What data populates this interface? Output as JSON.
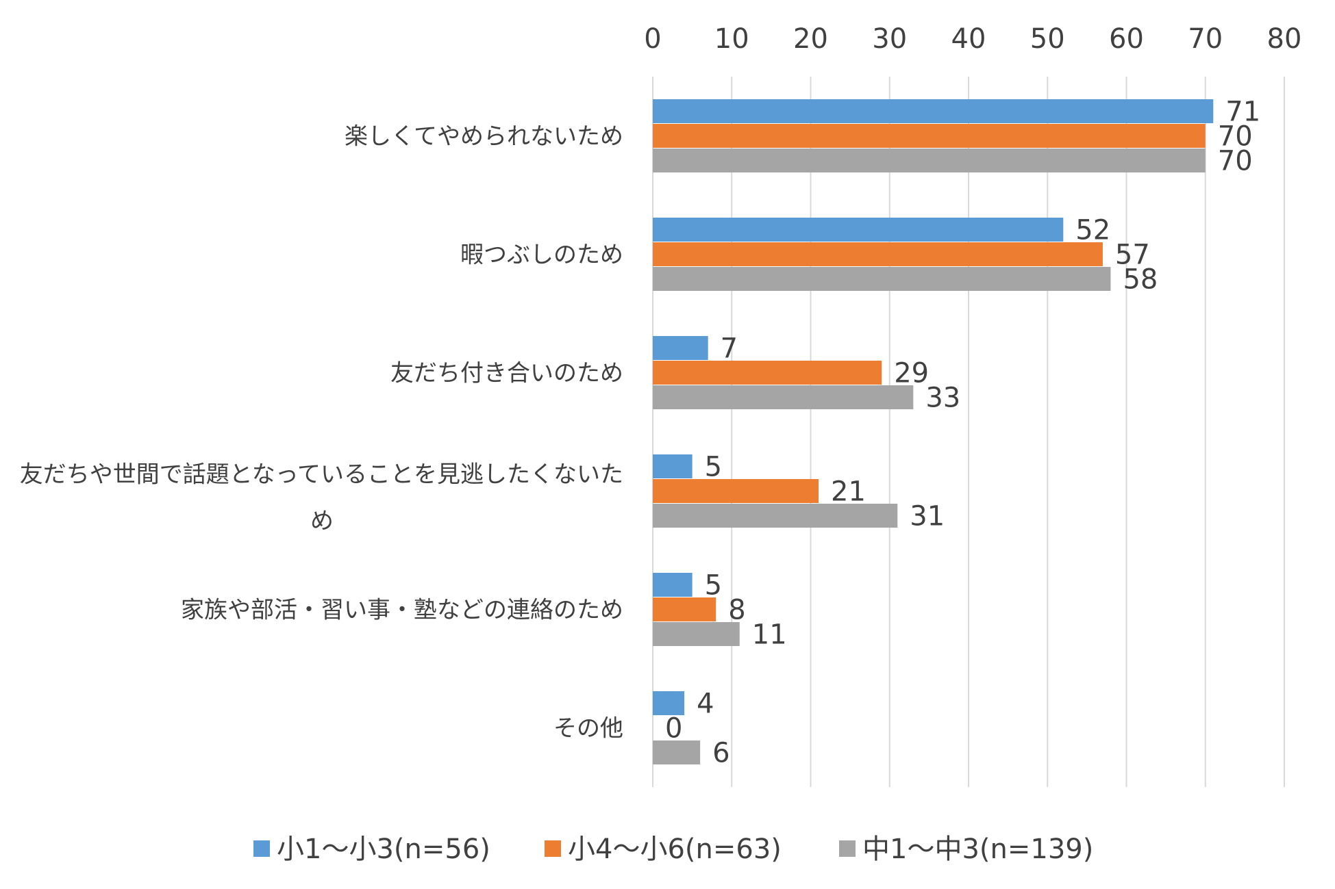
{
  "chart_data": {
    "type": "bar",
    "orientation": "horizontal",
    "title": "",
    "xlabel": "",
    "ylabel": "",
    "xlim": [
      0,
      80
    ],
    "x_ticks": [
      0,
      10,
      20,
      30,
      40,
      50,
      60,
      70,
      80
    ],
    "x_axis_position": "top",
    "grid": true,
    "legend_position": "bottom",
    "categories": [
      "楽しくてやめられないため",
      "暇つぶしのため",
      "友だち付き合いのため",
      "友だちや世間で話題となっていることを見逃したくないため",
      "家族や部活・習い事・塾などの連絡のため",
      "その他"
    ],
    "category_label_lines": [
      [
        "楽しくてやめられないため"
      ],
      [
        "暇つぶしのため"
      ],
      [
        "友だち付き合いのため"
      ],
      [
        "友だちや世間で話題となっていることを見逃したくないた",
        "め"
      ],
      [
        "家族や部活・習い事・塾などの連絡のため"
      ],
      [
        "その他"
      ]
    ],
    "series": [
      {
        "name": "小1～小3(n=56)",
        "color": "#5B9BD5",
        "values": [
          71,
          52,
          7,
          5,
          5,
          4
        ]
      },
      {
        "name": "小4～小6(n=63)",
        "color": "#ED7D31",
        "values": [
          70,
          57,
          29,
          21,
          8,
          0
        ]
      },
      {
        "name": "中1～中3(n=139)",
        "color": "#A5A5A5",
        "values": [
          70,
          58,
          33,
          31,
          11,
          6
        ]
      }
    ]
  }
}
